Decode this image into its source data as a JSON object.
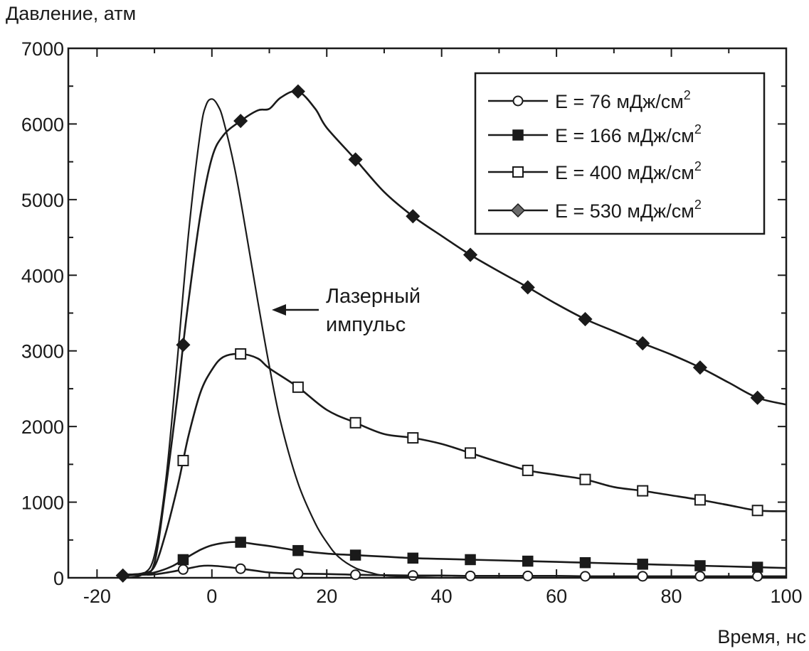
{
  "chart_data": {
    "type": "line",
    "title": "",
    "xlabel": "Время, нс",
    "ylabel": "Давление, атм",
    "xlim": [
      -25,
      100
    ],
    "ylim": [
      0,
      7000
    ],
    "x_ticks": [
      -20,
      0,
      20,
      40,
      60,
      80,
      100
    ],
    "y_ticks": [
      0,
      1000,
      2000,
      3000,
      4000,
      5000,
      6000,
      7000
    ],
    "grid": false,
    "legend_position": "top-right",
    "annotation": {
      "lines": [
        "Лазерный",
        "импульс"
      ],
      "points_to_x": 9,
      "points_to_y": 3500
    },
    "series": [
      {
        "name_main": "E = 76 мДж/см",
        "name_sup": "2",
        "marker": "open-circle",
        "x": [
          -15.5,
          -12,
          -10,
          -7,
          -5,
          -2,
          0,
          3,
          5,
          8,
          10,
          15,
          20,
          25,
          30,
          35,
          40,
          45,
          50,
          55,
          60,
          65,
          70,
          75,
          80,
          85,
          90,
          95,
          100
        ],
        "y": [
          30,
          40,
          45,
          80,
          110,
          155,
          160,
          140,
          120,
          90,
          70,
          55,
          50,
          40,
          35,
          30,
          30,
          25,
          25,
          25,
          25,
          20,
          20,
          20,
          20,
          20,
          20,
          20,
          20
        ],
        "marker_x": [
          -5,
          5,
          15,
          25,
          35,
          45,
          55,
          65,
          75,
          85,
          95
        ],
        "marker_y": [
          110,
          120,
          55,
          40,
          30,
          25,
          25,
          20,
          20,
          20,
          20
        ]
      },
      {
        "name_main": "E = 166 мДж/см",
        "name_sup": "2",
        "marker": "filled-square",
        "x": [
          -15.5,
          -12,
          -10,
          -7,
          -5,
          -2,
          0,
          3,
          5,
          8,
          10,
          15,
          20,
          25,
          30,
          35,
          40,
          45,
          50,
          55,
          60,
          65,
          70,
          75,
          80,
          85,
          90,
          95,
          100
        ],
        "y": [
          40,
          50,
          70,
          150,
          240,
          370,
          430,
          470,
          470,
          440,
          420,
          360,
          320,
          300,
          280,
          260,
          250,
          240,
          230,
          220,
          210,
          200,
          190,
          180,
          170,
          160,
          150,
          140,
          130
        ],
        "marker_x": [
          -5,
          5,
          15,
          25,
          35,
          45,
          55,
          65,
          75,
          85,
          95
        ],
        "marker_y": [
          240,
          470,
          360,
          300,
          260,
          240,
          220,
          200,
          180,
          160,
          140
        ]
      },
      {
        "name_main": "E = 400 мДж/см",
        "name_sup": "2",
        "marker": "open-square",
        "x": [
          -15.5,
          -12,
          -10,
          -8,
          -6,
          -5,
          -4,
          -2,
          0,
          2,
          5,
          8,
          10,
          15,
          20,
          25,
          30,
          35,
          40,
          45,
          50,
          55,
          60,
          65,
          70,
          75,
          80,
          85,
          90,
          95,
          100
        ],
        "y": [
          40,
          60,
          150,
          600,
          1200,
          1550,
          1900,
          2450,
          2750,
          2920,
          2960,
          2900,
          2770,
          2520,
          2220,
          2050,
          1900,
          1850,
          1770,
          1650,
          1530,
          1420,
          1360,
          1300,
          1200,
          1150,
          1090,
          1030,
          960,
          890,
          880
        ],
        "marker_x": [
          -5,
          5,
          15,
          25,
          35,
          45,
          55,
          65,
          75,
          85,
          95
        ],
        "marker_y": [
          1550,
          2960,
          2520,
          2050,
          1850,
          1650,
          1420,
          1300,
          1150,
          1030,
          890
        ]
      },
      {
        "name_main": "E = 530 мДж/см",
        "name_sup": "2",
        "marker": "filled-diamond",
        "x": [
          -15.5,
          -12,
          -10,
          -8,
          -6,
          -5,
          -4,
          -2,
          0,
          2,
          5,
          8,
          10,
          12,
          15,
          18,
          20,
          25,
          30,
          35,
          40,
          45,
          50,
          55,
          60,
          65,
          70,
          75,
          80,
          85,
          90,
          95,
          100
        ],
        "y": [
          30,
          60,
          200,
          1200,
          2400,
          3080,
          3700,
          4800,
          5550,
          5850,
          6040,
          6180,
          6200,
          6350,
          6430,
          6200,
          5950,
          5530,
          5100,
          4780,
          4520,
          4270,
          4050,
          3840,
          3620,
          3420,
          3260,
          3100,
          2950,
          2780,
          2580,
          2380,
          2290
        ],
        "marker_x": [
          -15.5,
          -5,
          5,
          15,
          25,
          35,
          45,
          55,
          65,
          75,
          85,
          95
        ],
        "marker_y": [
          30,
          3080,
          6040,
          6430,
          5530,
          4780,
          4270,
          3840,
          3420,
          3100,
          2780,
          2380
        ]
      },
      {
        "name_main": "Лазерный импульс",
        "name_sup": "",
        "marker": "none",
        "in_legend": false,
        "x": [
          -15,
          -12,
          -10,
          -8,
          -6,
          -4,
          -2,
          -1,
          0,
          1,
          2,
          4,
          6,
          8,
          10,
          12,
          15,
          18,
          20,
          22,
          25,
          28,
          30,
          35,
          40
        ],
        "y": [
          0,
          50,
          300,
          1300,
          2900,
          4600,
          5900,
          6250,
          6330,
          6250,
          6050,
          5400,
          4550,
          3650,
          2800,
          2050,
          1250,
          720,
          470,
          280,
          130,
          60,
          30,
          10,
          0
        ]
      }
    ]
  }
}
